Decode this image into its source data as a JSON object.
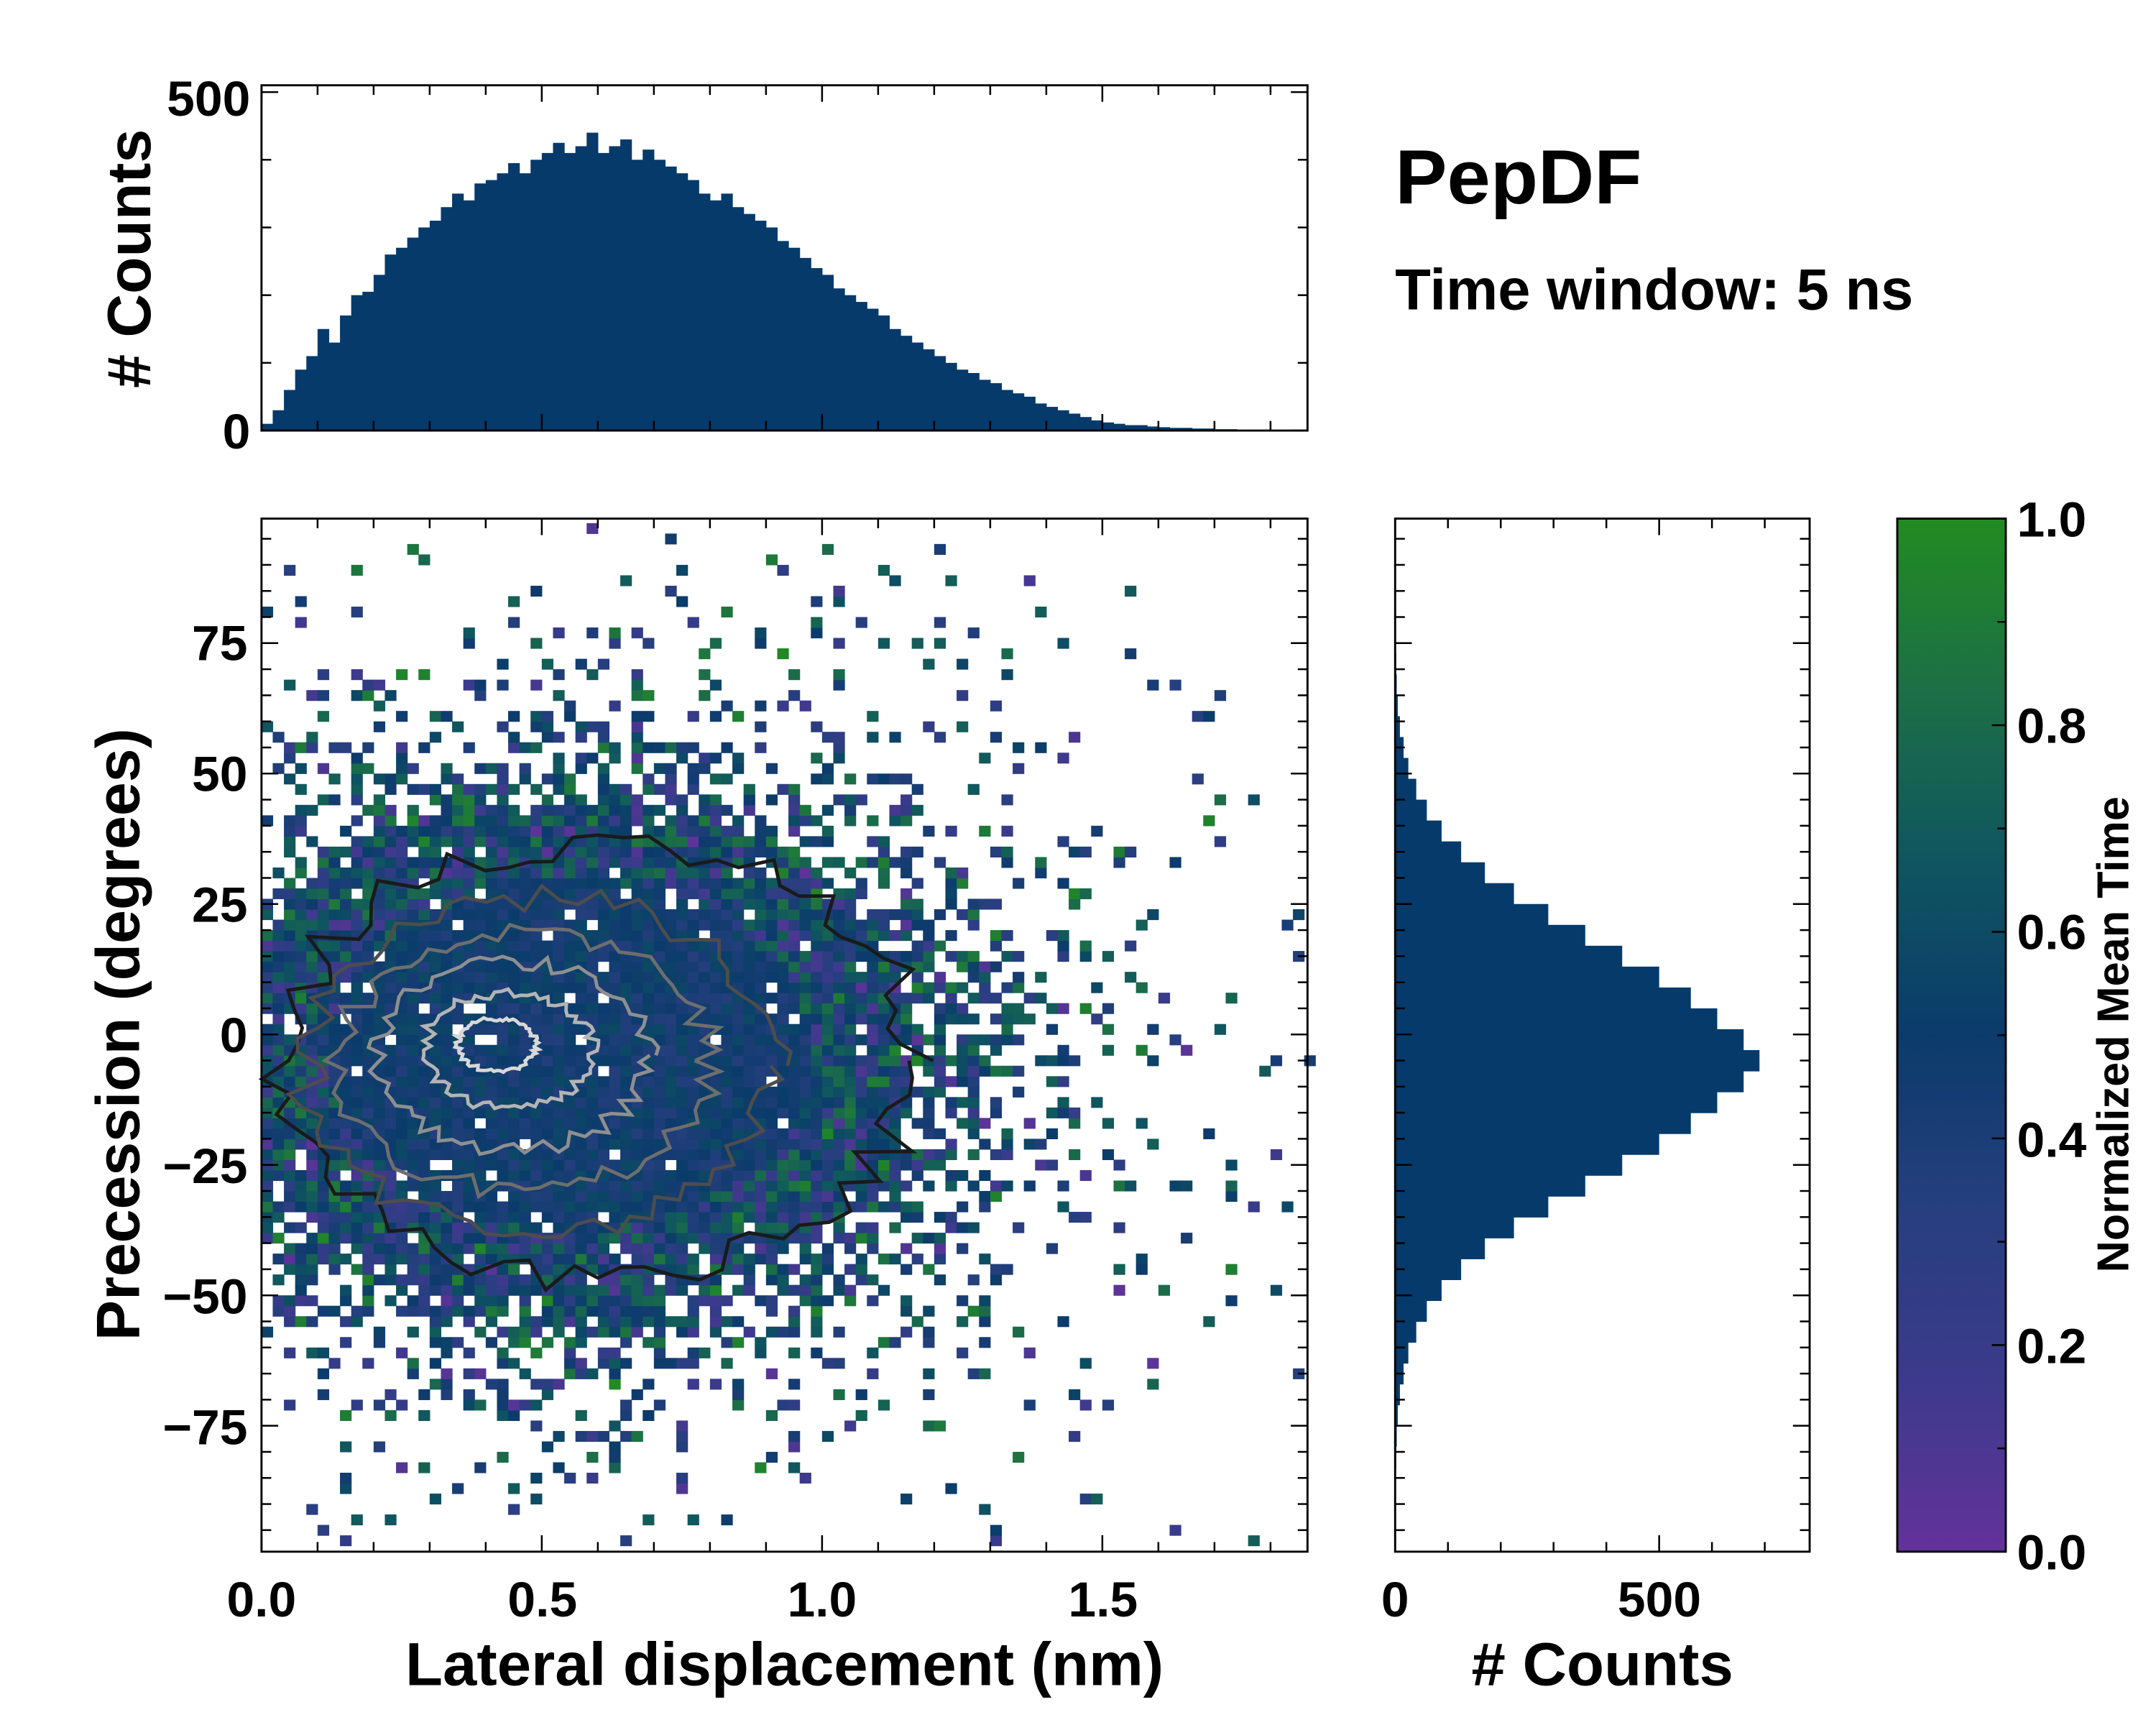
{
  "chart_data": [
    {
      "type": "heatmap",
      "title": "PepDF",
      "subtitle": "Time window: 5 ns",
      "xlabel": "Lateral displacement (nm)",
      "ylabel": "Precession (degrees)",
      "xlim": [
        0,
        1.866
      ],
      "ylim": [
        -99,
        99
      ],
      "xticks": [
        "0.0",
        "0.5",
        "1.0",
        "1.5"
      ],
      "xtick_values": [
        0,
        0.5,
        1.0,
        1.5
      ],
      "yticks": [
        "75",
        "50",
        "25",
        "0",
        "−25",
        "−50",
        "−75"
      ],
      "ytick_values": [
        75,
        50,
        25,
        0,
        -25,
        -50,
        -75
      ],
      "bin_width_x": 0.02,
      "bin_width_y": 2,
      "density_center": [
        0.55,
        -4
      ],
      "contour_colors": [
        "#1a1a1a",
        "#4d4d4d",
        "#6e6e6e",
        "#8f8f8f",
        "#b4b4b4",
        "#d8d8d8"
      ],
      "colorbar": {
        "label": "Normalized Mean Time",
        "range": [
          0.0,
          1.0
        ],
        "ticks": [
          "0.0",
          "0.2",
          "0.4",
          "0.6",
          "0.8",
          "1.0"
        ],
        "tick_values": [
          0,
          0.2,
          0.4,
          0.6,
          0.8,
          1.0
        ],
        "colors": [
          "#63329a",
          "#3c3a8c",
          "#263f7e",
          "#0b3b6b",
          "#0f5560",
          "#1c6f46",
          "#228b22"
        ]
      }
    },
    {
      "type": "bar",
      "name": "top-marginal",
      "ylabel": "# Counts",
      "ylim": [
        0,
        510
      ],
      "yticks": [
        "0",
        "500"
      ],
      "ytick_values": [
        0,
        500
      ],
      "bin_start": 0,
      "bin_width": 0.02,
      "values": [
        10,
        30,
        60,
        90,
        110,
        150,
        130,
        170,
        200,
        205,
        230,
        260,
        270,
        285,
        300,
        310,
        330,
        350,
        340,
        365,
        370,
        380,
        395,
        380,
        400,
        410,
        425,
        410,
        420,
        440,
        410,
        420,
        430,
        400,
        415,
        400,
        390,
        380,
        370,
        350,
        340,
        350,
        330,
        320,
        310,
        300,
        280,
        270,
        255,
        240,
        230,
        210,
        200,
        190,
        180,
        170,
        150,
        140,
        130,
        120,
        110,
        100,
        90,
        85,
        75,
        70,
        60,
        55,
        50,
        40,
        35,
        30,
        25,
        20,
        15,
        12,
        10,
        8,
        8,
        6,
        5,
        4,
        4,
        3,
        3,
        2,
        2,
        1,
        1,
        1,
        0,
        1,
        0
      ],
      "color": "#053a6b"
    },
    {
      "type": "bar",
      "name": "right-marginal",
      "orientation": "horizontal",
      "xlabel": "# Counts",
      "xlim": [
        0,
        785
      ],
      "xticks": [
        "0",
        "500"
      ],
      "xtick_values": [
        0,
        500
      ],
      "bin_start": -99,
      "bin_width": 4,
      "values": [
        0,
        0,
        1,
        1,
        2,
        3,
        5,
        9,
        16,
        25,
        40,
        60,
        88,
        125,
        170,
        225,
        290,
        360,
        430,
        500,
        560,
        610,
        660,
        690,
        660,
        610,
        560,
        500,
        430,
        360,
        290,
        225,
        170,
        125,
        88,
        60,
        40,
        25,
        16,
        9,
        5,
        3,
        2,
        1,
        1,
        0,
        0,
        0,
        0,
        0
      ],
      "color": "#053a6b"
    }
  ]
}
